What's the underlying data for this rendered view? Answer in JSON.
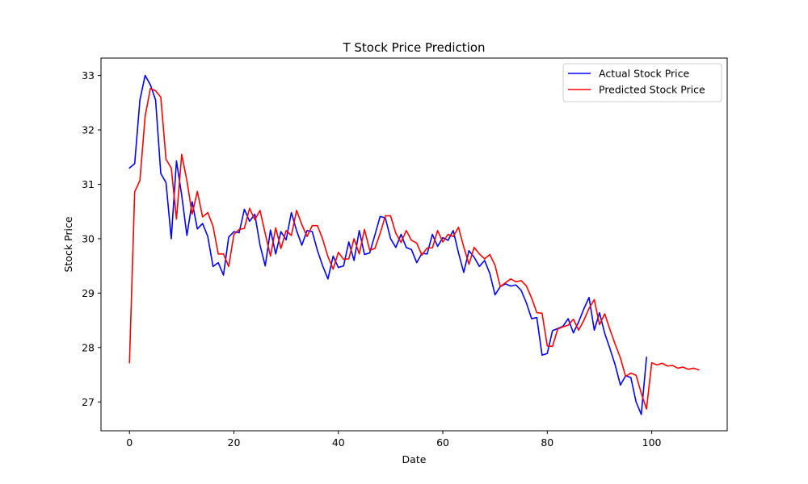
{
  "chart_data": {
    "type": "line",
    "title": "T Stock Price Prediction",
    "xlabel": "Date",
    "ylabel": "Stock Price",
    "xlim": [
      -5.45,
      114.45
    ],
    "ylim": [
      26.47,
      33.32
    ],
    "xticks": [
      0,
      20,
      40,
      60,
      80,
      100
    ],
    "yticks": [
      27,
      28,
      29,
      30,
      31,
      32,
      33
    ],
    "grid": false,
    "legend_position": "top-right",
    "series": [
      {
        "name": "Actual Stock Price",
        "color": "#0000ff",
        "x_start": 0,
        "values": [
          31.3,
          31.38,
          32.55,
          33.0,
          32.83,
          32.55,
          31.2,
          31.03,
          30.0,
          31.43,
          30.8,
          30.06,
          30.68,
          30.18,
          30.28,
          30.04,
          29.49,
          29.56,
          29.33,
          30.03,
          30.13,
          30.11,
          30.54,
          30.32,
          30.45,
          29.88,
          29.5,
          30.16,
          29.72,
          30.13,
          29.98,
          30.48,
          30.15,
          29.88,
          30.15,
          30.13,
          29.78,
          29.5,
          29.26,
          29.68,
          29.47,
          29.5,
          29.94,
          29.6,
          30.15,
          29.71,
          29.74,
          30.07,
          30.41,
          30.38,
          30.0,
          29.84,
          30.08,
          29.84,
          29.8,
          29.56,
          29.73,
          29.72,
          30.08,
          29.86,
          30.02,
          29.97,
          30.15,
          29.74,
          29.38,
          29.78,
          29.66,
          29.49,
          29.6,
          29.36,
          28.97,
          29.12,
          29.17,
          29.13,
          29.15,
          29.05,
          28.82,
          28.53,
          28.55,
          27.86,
          27.89,
          28.31,
          28.35,
          28.39,
          28.53,
          28.27,
          28.47,
          28.71,
          28.92,
          28.32,
          28.64,
          28.26,
          27.98,
          27.68,
          27.31,
          27.48,
          27.45,
          27.0,
          26.77,
          27.82
        ]
      },
      {
        "name": "Predicted Stock Price",
        "color": "#ff0000",
        "x_start": 0,
        "values": [
          27.72,
          30.86,
          31.07,
          32.25,
          32.76,
          32.72,
          32.6,
          31.46,
          31.3,
          30.36,
          31.55,
          31.07,
          30.45,
          30.87,
          30.4,
          30.48,
          30.23,
          29.72,
          29.72,
          29.49,
          30.08,
          30.17,
          30.19,
          30.56,
          30.35,
          30.52,
          30.09,
          29.68,
          30.2,
          29.82,
          30.15,
          30.06,
          30.52,
          30.26,
          30.04,
          30.24,
          30.24,
          29.99,
          29.67,
          29.44,
          29.75,
          29.62,
          29.63,
          30.0,
          29.72,
          30.17,
          29.79,
          29.82,
          30.1,
          30.42,
          30.42,
          30.1,
          29.93,
          30.15,
          29.97,
          29.92,
          29.7,
          29.83,
          29.83,
          30.15,
          29.94,
          30.08,
          30.04,
          30.21,
          29.85,
          29.53,
          29.84,
          29.72,
          29.63,
          29.71,
          29.51,
          29.12,
          29.19,
          29.26,
          29.21,
          29.23,
          29.13,
          28.91,
          28.64,
          28.63,
          28.03,
          28.02,
          28.34,
          28.38,
          28.41,
          28.52,
          28.32,
          28.5,
          28.72,
          28.88,
          28.42,
          28.62,
          28.33,
          28.06,
          27.81,
          27.47,
          27.53,
          27.49,
          27.16,
          26.87,
          27.72,
          27.68,
          27.71,
          27.66,
          27.67,
          27.62,
          27.64,
          27.6,
          27.62,
          27.59
        ]
      }
    ]
  }
}
